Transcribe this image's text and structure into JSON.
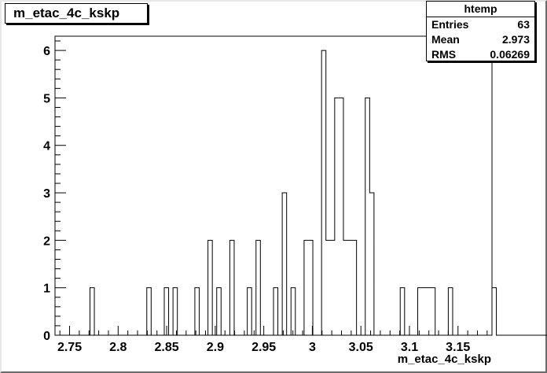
{
  "title": "m_etac_4c_kskp",
  "stats": {
    "name": "htemp",
    "rows": [
      {
        "label": "Entries",
        "value": "63"
      },
      {
        "label": "Mean",
        "value": "2.973"
      },
      {
        "label": "RMS",
        "value": "0.06269"
      }
    ]
  },
  "chart_data": {
    "type": "bar",
    "title": "m_etac_4c_kskp",
    "xlabel": "m_etac_4c_kskp",
    "ylabel": "",
    "xlim": [
      2.735,
      3.185
    ],
    "ylim": [
      0,
      6.3
    ],
    "x_ticks": [
      "2.75",
      "2.8",
      "2.85",
      "2.9",
      "2.95",
      "3",
      "3.05",
      "3.1",
      "3.15"
    ],
    "x_tick_values": [
      2.75,
      2.8,
      2.85,
      2.9,
      2.95,
      3.0,
      3.05,
      3.1,
      3.15
    ],
    "y_ticks": [
      "0",
      "1",
      "2",
      "3",
      "4",
      "5",
      "6"
    ],
    "y_tick_values": [
      0,
      1,
      2,
      3,
      4,
      5,
      6
    ],
    "bin_low": 2.735,
    "bin_width": 0.0045,
    "counts": [
      0,
      0,
      0,
      0,
      0,
      0,
      0,
      0,
      1,
      0,
      0,
      0,
      0,
      0,
      0,
      0,
      0,
      0,
      0,
      0,
      0,
      1,
      0,
      0,
      0,
      1,
      0,
      1,
      0,
      0,
      0,
      0,
      1,
      0,
      0,
      2,
      0,
      1,
      0,
      0,
      2,
      0,
      0,
      0,
      1,
      0,
      2,
      0,
      0,
      0,
      1,
      0,
      3,
      0,
      1,
      0,
      0,
      2,
      2,
      0,
      0,
      6,
      2,
      2,
      5,
      5,
      2,
      2,
      2,
      0,
      0,
      5,
      3,
      0,
      0,
      0,
      0,
      0,
      0,
      1,
      0,
      0,
      0,
      1,
      1,
      1,
      1,
      0,
      0,
      0,
      1,
      0,
      0,
      0,
      0,
      0,
      0,
      0,
      0,
      0,
      1,
      0,
      0,
      0,
      0,
      0,
      0,
      0,
      0,
      0,
      0,
      0,
      0,
      0,
      0,
      0,
      0,
      0,
      0,
      0,
      0,
      0,
      0,
      0,
      0,
      0,
      0,
      0,
      0,
      0,
      0,
      0,
      0,
      0,
      0,
      0,
      0,
      0,
      0,
      0
    ],
    "line_color": "#000000",
    "grid": false,
    "legend": "top-right"
  }
}
